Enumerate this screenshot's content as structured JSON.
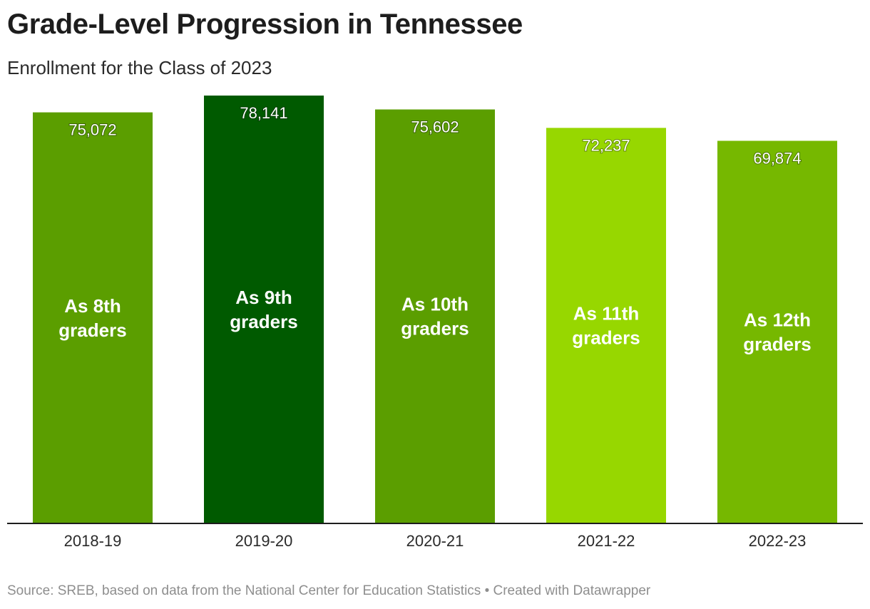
{
  "header": {
    "title": "Grade-Level Progression in Tennessee",
    "subtitle": "Enrollment for the Class of 2023"
  },
  "footer": {
    "source": "Source: SREB, based on data from the National Center for Education Statistics • Created with Datawrapper"
  },
  "chart_data": {
    "type": "bar",
    "title": "Grade-Level Progression in Tennessee",
    "subtitle": "Enrollment for the Class of 2023",
    "xlabel": "",
    "ylabel": "",
    "categories": [
      "2018-19",
      "2019-20",
      "2020-21",
      "2021-22",
      "2022-23"
    ],
    "values": [
      75072,
      78141,
      75602,
      72237,
      69874
    ],
    "value_labels": [
      "75,072",
      "78,141",
      "75,602",
      "72,237",
      "69,874"
    ],
    "bar_labels": [
      [
        "As 8th",
        "graders"
      ],
      [
        "As 9th",
        "graders"
      ],
      [
        "As 10th",
        "graders"
      ],
      [
        "As 11th",
        "graders"
      ],
      [
        "As 12th",
        "graders"
      ]
    ],
    "colors": [
      "#5b9e00",
      "#005a00",
      "#5b9e00",
      "#97d700",
      "#76b800"
    ],
    "ylim": [
      0,
      78141
    ],
    "grid": false,
    "legend": "none"
  }
}
